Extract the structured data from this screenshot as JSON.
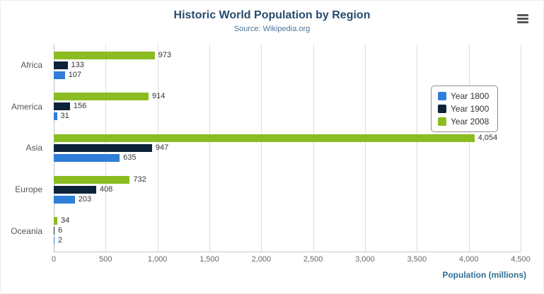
{
  "chart_data": {
    "type": "bar",
    "orientation": "horizontal",
    "title": "Historic World Population by Region",
    "subtitle": "Source: Wikipedia.org",
    "categories": [
      "Africa",
      "America",
      "Asia",
      "Europe",
      "Oceania"
    ],
    "series": [
      {
        "name": "Year 1800",
        "color": "#2f7ed8",
        "values": [
          107,
          31,
          635,
          203,
          2
        ]
      },
      {
        "name": "Year 1900",
        "color": "#0d233a",
        "values": [
          133,
          156,
          947,
          408,
          6
        ]
      },
      {
        "name": "Year 2008",
        "color": "#8bbc21",
        "values": [
          973,
          914,
          4054,
          732,
          34
        ]
      }
    ],
    "bar_display_order_top_to_bottom": [
      "Year 2008",
      "Year 1900",
      "Year 1800"
    ],
    "data_labels": true,
    "xlabel": "Population (millions)",
    "xlim": [
      0,
      4500
    ],
    "xticks": [
      0,
      500,
      1000,
      1500,
      2000,
      2500,
      3000,
      3500,
      4000,
      4500
    ],
    "grid": true,
    "legend_position": "right"
  },
  "icons": {
    "menu": "hamburger-menu-icon"
  },
  "colors": {
    "title": "#274b6d",
    "subtitle": "#4d759e",
    "axis_title": "#2f6f93",
    "tick_label": "#666666",
    "category_label": "#555555",
    "grid": "#dcdcdc",
    "axis_line": "#c0c0c0",
    "data_label": "#333333",
    "legend_border": "#909090"
  }
}
